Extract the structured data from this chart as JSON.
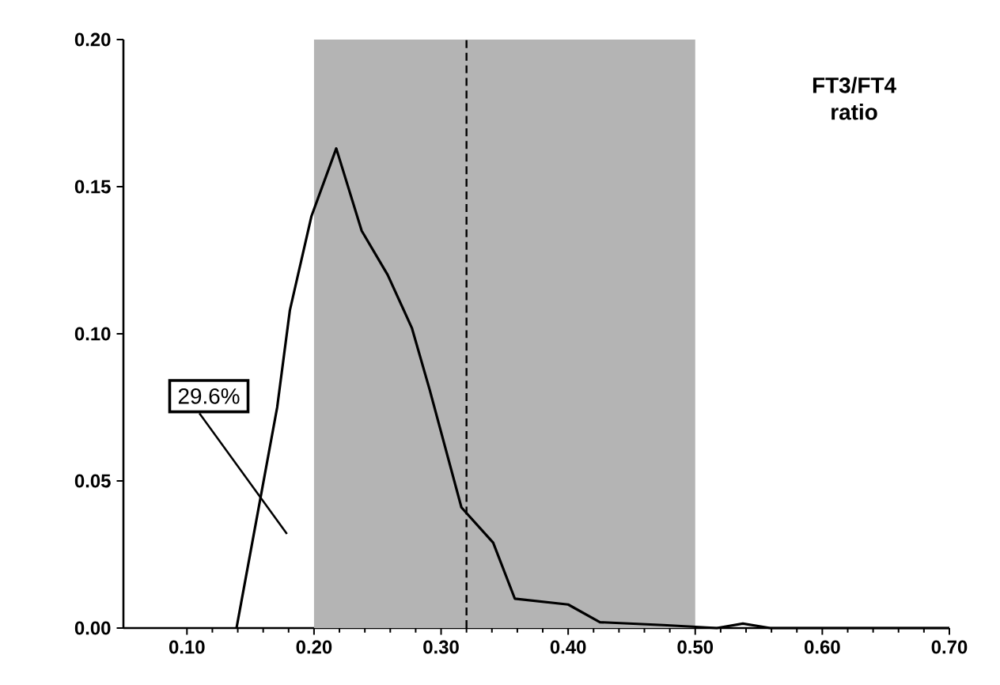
{
  "chart_data": {
    "type": "line",
    "title": "FT3/FT4 ratio",
    "x": [
      0.139,
      0.171,
      0.181,
      0.198,
      0.2175,
      0.2375,
      0.258,
      0.277,
      0.291,
      0.316,
      0.341,
      0.358,
      0.4,
      0.425,
      0.475,
      0.517,
      0.5375,
      0.559,
      0.7
    ],
    "series": [
      {
        "color": "#000000",
        "values": [
          0,
          0.075,
          0.108,
          0.14,
          0.163,
          0.135,
          0.12,
          0.102,
          0.081,
          0.041,
          0.029,
          0.01,
          0.008,
          0.002,
          0.001,
          0,
          0.0015,
          0,
          0
        ]
      }
    ],
    "xlim": [
      0.05,
      0.7
    ],
    "xticks": [
      {
        "value": 0.1,
        "label": "0.10"
      },
      {
        "value": 0.2,
        "label": "0.20"
      },
      {
        "value": 0.3,
        "label": "0.30"
      },
      {
        "value": 0.4,
        "label": "0.40"
      },
      {
        "value": 0.5,
        "label": "0.50"
      },
      {
        "value": 0.6,
        "label": "0.60"
      },
      {
        "value": 0.7,
        "label": "0.70"
      }
    ],
    "ylim": [
      0,
      0.2
    ],
    "yticks": [
      {
        "value": 0,
        "label": "0.00"
      },
      {
        "value": 0.05,
        "label": "0.05"
      },
      {
        "value": 0.1,
        "label": "0.10"
      },
      {
        "value": 0.15,
        "label": "0.15"
      },
      {
        "value": 0.2,
        "label": "0.20"
      }
    ],
    "bands": [
      {
        "axis": "x",
        "from": 0.2,
        "to": 0.5,
        "color": "#b4b4b4"
      }
    ],
    "ref_lines": [
      {
        "axis": "x",
        "value": 0.32,
        "line_style": "dashed",
        "color": "#000000"
      }
    ],
    "annotations": [
      "29.6%"
    ],
    "grid": false,
    "marker": "none",
    "line_style": "solid"
  }
}
